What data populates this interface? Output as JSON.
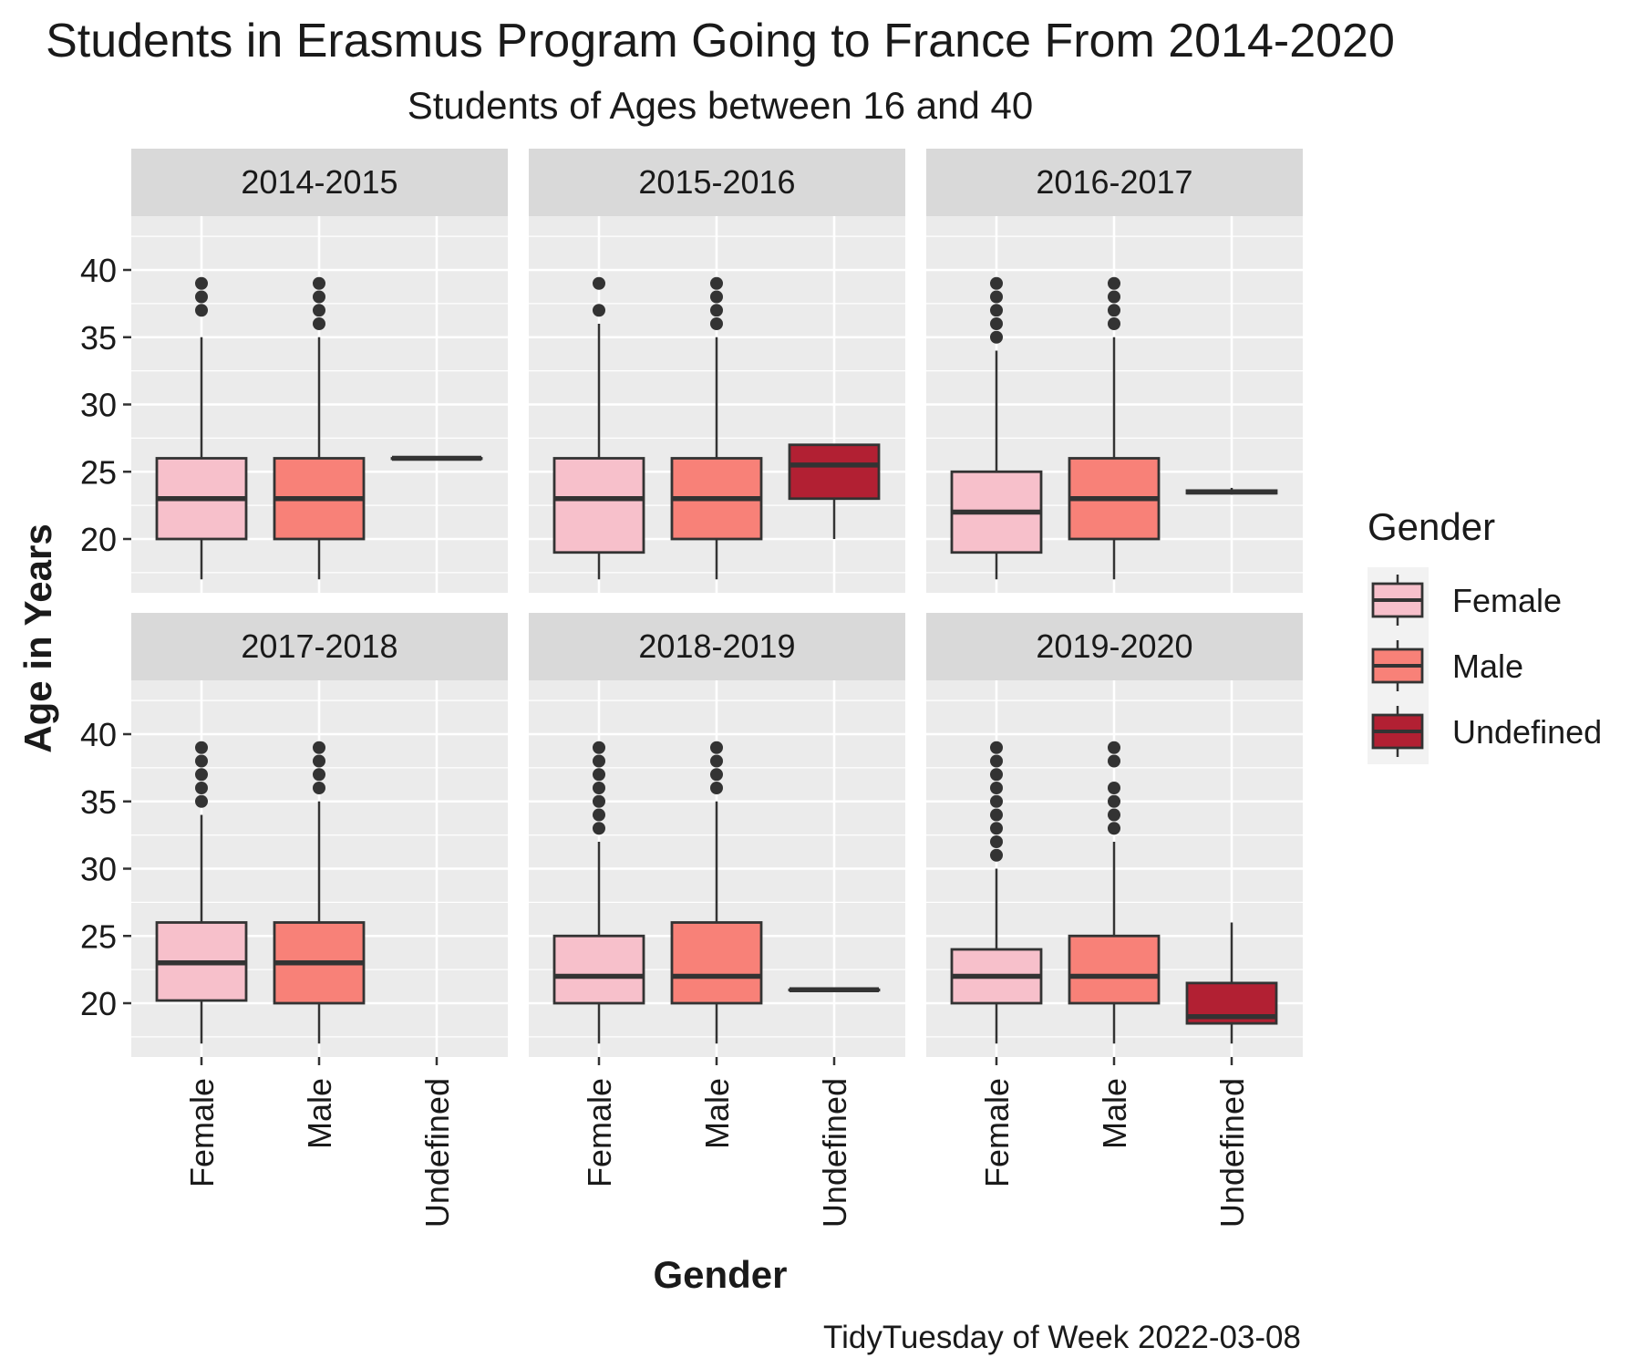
{
  "chart_data": {
    "type": "boxplot",
    "title": "Students in Erasmus Program Going to France From 2014-2020",
    "subtitle": "Students of Ages between 16 and 40",
    "xlabel": "Gender",
    "ylabel": "Age in Years",
    "caption": "TidyTuesday of Week 2022-03-08",
    "ylim": [
      16,
      44
    ],
    "yticks": [
      20,
      25,
      30,
      35,
      40
    ],
    "categories": [
      "Female",
      "Male",
      "Undefined"
    ],
    "grid": true,
    "legend": {
      "title": "Gender",
      "position": "right",
      "entries": [
        {
          "label": "Female",
          "color": "#F7C0CB"
        },
        {
          "label": "Male",
          "color": "#F88178"
        },
        {
          "label": "Undefined",
          "color": "#B22033"
        }
      ]
    },
    "panels": [
      {
        "label": "2014-2015",
        "boxes": [
          {
            "category": "Female",
            "whisker_low": 17,
            "q1": 20,
            "median": 23,
            "q3": 26,
            "whisker_high": 35,
            "outliers": [
              37,
              38,
              39
            ]
          },
          {
            "category": "Male",
            "whisker_low": 17,
            "q1": 20,
            "median": 23,
            "q3": 26,
            "whisker_high": 35,
            "outliers": [
              36,
              37,
              38,
              39
            ]
          },
          {
            "category": "Undefined",
            "whisker_low": 26,
            "q1": 26,
            "median": 26,
            "q3": 26,
            "whisker_high": 26,
            "outliers": []
          }
        ]
      },
      {
        "label": "2015-2016",
        "boxes": [
          {
            "category": "Female",
            "whisker_low": 17,
            "q1": 19,
            "median": 23,
            "q3": 26,
            "whisker_high": 36,
            "outliers": [
              37,
              39
            ]
          },
          {
            "category": "Male",
            "whisker_low": 17,
            "q1": 20,
            "median": 23,
            "q3": 26,
            "whisker_high": 35,
            "outliers": [
              36,
              37,
              38,
              39
            ]
          },
          {
            "category": "Undefined",
            "whisker_low": 20,
            "q1": 23,
            "median": 25.5,
            "q3": 27,
            "whisker_high": 27,
            "outliers": []
          }
        ]
      },
      {
        "label": "2016-2017",
        "boxes": [
          {
            "category": "Female",
            "whisker_low": 17,
            "q1": 19,
            "median": 22,
            "q3": 25,
            "whisker_high": 34,
            "outliers": [
              35,
              36,
              37,
              38,
              39
            ]
          },
          {
            "category": "Male",
            "whisker_low": 17,
            "q1": 20,
            "median": 23,
            "q3": 26,
            "whisker_high": 35,
            "outliers": [
              36,
              37,
              38,
              39
            ]
          },
          {
            "category": "Undefined",
            "whisker_low": 23.3,
            "q1": 23.4,
            "median": 23.5,
            "q3": 23.6,
            "whisker_high": 23.8,
            "outliers": []
          }
        ]
      },
      {
        "label": "2017-2018",
        "boxes": [
          {
            "category": "Female",
            "whisker_low": 17,
            "q1": 20.2,
            "median": 23,
            "q3": 26,
            "whisker_high": 34,
            "outliers": [
              35,
              36,
              37,
              38,
              39
            ]
          },
          {
            "category": "Male",
            "whisker_low": 17,
            "q1": 20,
            "median": 23,
            "q3": 26,
            "whisker_high": 35,
            "outliers": [
              36,
              37,
              38,
              39
            ]
          }
        ]
      },
      {
        "label": "2018-2019",
        "boxes": [
          {
            "category": "Female",
            "whisker_low": 17,
            "q1": 20,
            "median": 22,
            "q3": 25,
            "whisker_high": 32,
            "outliers": [
              33,
              34,
              35,
              36,
              37,
              38,
              39
            ]
          },
          {
            "category": "Male",
            "whisker_low": 17,
            "q1": 20,
            "median": 22,
            "q3": 26,
            "whisker_high": 35,
            "outliers": [
              36,
              37,
              38,
              39
            ]
          },
          {
            "category": "Undefined",
            "whisker_low": 21,
            "q1": 21,
            "median": 21,
            "q3": 21,
            "whisker_high": 21,
            "outliers": []
          }
        ]
      },
      {
        "label": "2019-2020",
        "boxes": [
          {
            "category": "Female",
            "whisker_low": 17,
            "q1": 20,
            "median": 22,
            "q3": 24,
            "whisker_high": 30,
            "outliers": [
              31,
              32,
              33,
              34,
              35,
              36,
              37,
              38,
              39
            ]
          },
          {
            "category": "Male",
            "whisker_low": 17,
            "q1": 20,
            "median": 22,
            "q3": 25,
            "whisker_high": 32,
            "outliers": [
              33,
              34,
              35,
              36,
              38,
              39
            ]
          },
          {
            "category": "Undefined",
            "whisker_low": 17,
            "q1": 18.5,
            "median": 19,
            "q3": 21.5,
            "whisker_high": 26,
            "outliers": []
          }
        ]
      }
    ]
  }
}
